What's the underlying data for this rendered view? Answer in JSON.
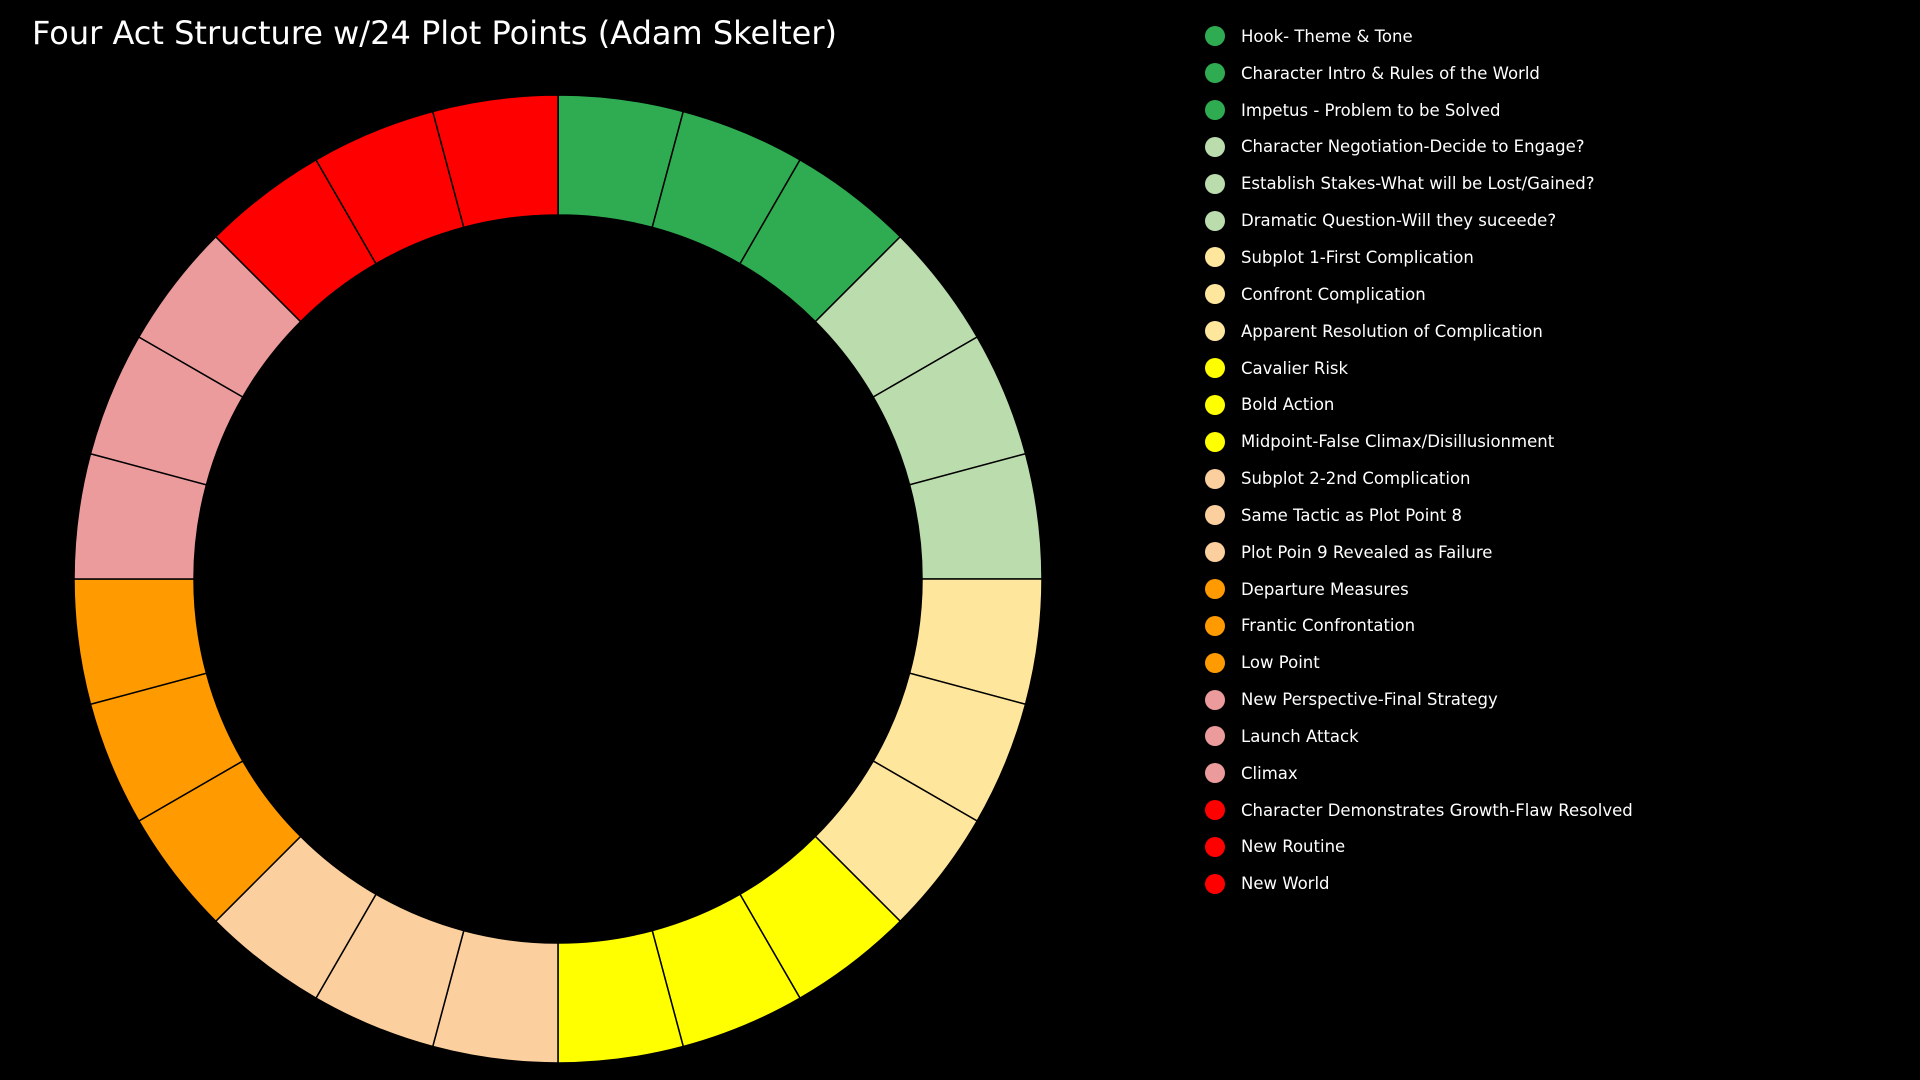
{
  "chart_data": {
    "type": "pie",
    "variant": "donut",
    "title": "Four Act Structure w/24 Plot Points (Adam Skelter)",
    "legend_position": "right",
    "background": "#000000",
    "segment_border_color": "#000000",
    "categories": [
      "Hook- Theme & Tone",
      "Character Intro & Rules of the World",
      "Impetus - Problem to be Solved",
      "Character Negotiation-Decide to Engage?",
      "Establish Stakes-What will be Lost/Gained?",
      "Dramatic Question-Will they suceede?",
      "Subplot 1-First Complication",
      "Confront Complication",
      "Apparent Resolution of Complication",
      "Cavalier Risk",
      "Bold Action",
      "Midpoint-False Climax/Disillusionment",
      "Subplot 2-2nd Complication",
      "Same Tactic as Plot Point 8",
      "Plot Poin 9 Revealed as Failure",
      "Departure Measures",
      "Frantic Confrontation",
      "Low Point",
      "New Perspective-Final Strategy",
      "Launch Attack",
      "Climax",
      "Character Demonstrates Growth-Flaw Resolved",
      "New Routine",
      "New World"
    ],
    "values": [
      1,
      1,
      1,
      1,
      1,
      1,
      1,
      1,
      1,
      1,
      1,
      1,
      1,
      1,
      1,
      1,
      1,
      1,
      1,
      1,
      1,
      1,
      1,
      1
    ],
    "colors": [
      "#2fac51",
      "#2fac51",
      "#2fac51",
      "#bbdcad",
      "#bbdcad",
      "#bbdcad",
      "#fee69d",
      "#fee69d",
      "#fee69d",
      "#ffff00",
      "#ffff00",
      "#ffff00",
      "#fbcf9e",
      "#fbcf9e",
      "#fbcf9e",
      "#ff9a00",
      "#ff9a00",
      "#ff9a00",
      "#eb9b9c",
      "#eb9b9c",
      "#eb9b9c",
      "#ff0000",
      "#ff0000",
      "#ff0000"
    ]
  }
}
